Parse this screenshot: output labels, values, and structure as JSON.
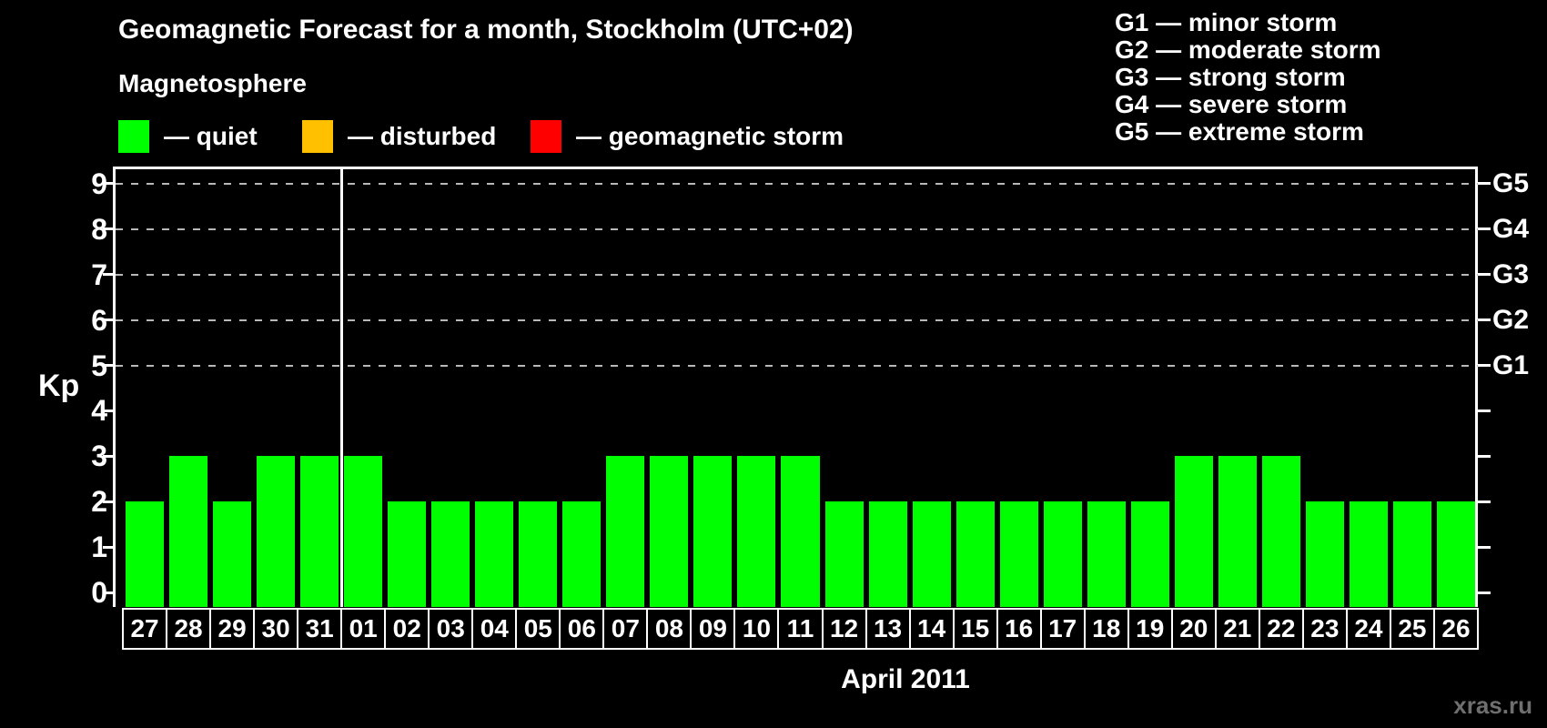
{
  "title": "Geomagnetic Forecast for a month, Stockholm (UTC+02)",
  "legend": {
    "heading": "Magnetosphere",
    "items": [
      {
        "name": "quiet",
        "label": "— quiet",
        "color": "#00ff00"
      },
      {
        "name": "disturbed",
        "label": "— disturbed",
        "color": "#ffc000"
      },
      {
        "name": "geomagnetic-storm",
        "label": "— geomagnetic storm",
        "color": "#ff0000"
      }
    ]
  },
  "storm_scale": [
    "G1 — minor storm",
    "G2 — moderate storm",
    "G3 — strong storm",
    "G4 — severe storm",
    "G5 — extreme storm"
  ],
  "watermark": "xras.ru",
  "chart_data": {
    "type": "bar",
    "title": "Geomagnetic Forecast for a month, Stockholm (UTC+02)",
    "ylabel": "Kp",
    "xlabel": "April 2011",
    "categories": [
      "27",
      "28",
      "29",
      "30",
      "31",
      "01",
      "02",
      "03",
      "04",
      "05",
      "06",
      "07",
      "08",
      "09",
      "10",
      "11",
      "12",
      "13",
      "14",
      "15",
      "16",
      "17",
      "18",
      "19",
      "20",
      "21",
      "22",
      "23",
      "24",
      "25",
      "26"
    ],
    "values": [
      2,
      3,
      2,
      3,
      3,
      3,
      2,
      2,
      2,
      2,
      2,
      3,
      3,
      3,
      3,
      3,
      2,
      2,
      2,
      2,
      2,
      2,
      2,
      2,
      3,
      3,
      3,
      2,
      2,
      2,
      2
    ],
    "bar_color": "#00ff00",
    "ylim": [
      0,
      9
    ],
    "yticks": [
      0,
      1,
      2,
      3,
      4,
      5,
      6,
      7,
      8,
      9
    ],
    "gridlines_at": [
      5,
      6,
      7,
      8,
      9
    ],
    "right_axis_labels": [
      {
        "value": 5,
        "label": "G1"
      },
      {
        "value": 6,
        "label": "G2"
      },
      {
        "value": 7,
        "label": "G3"
      },
      {
        "value": 8,
        "label": "G4"
      },
      {
        "value": 9,
        "label": "G5"
      }
    ],
    "month_boundary_after_index": 4,
    "grid": "dashed horizontal lines at storm levels G1–G5",
    "legend_position": "top-left"
  }
}
